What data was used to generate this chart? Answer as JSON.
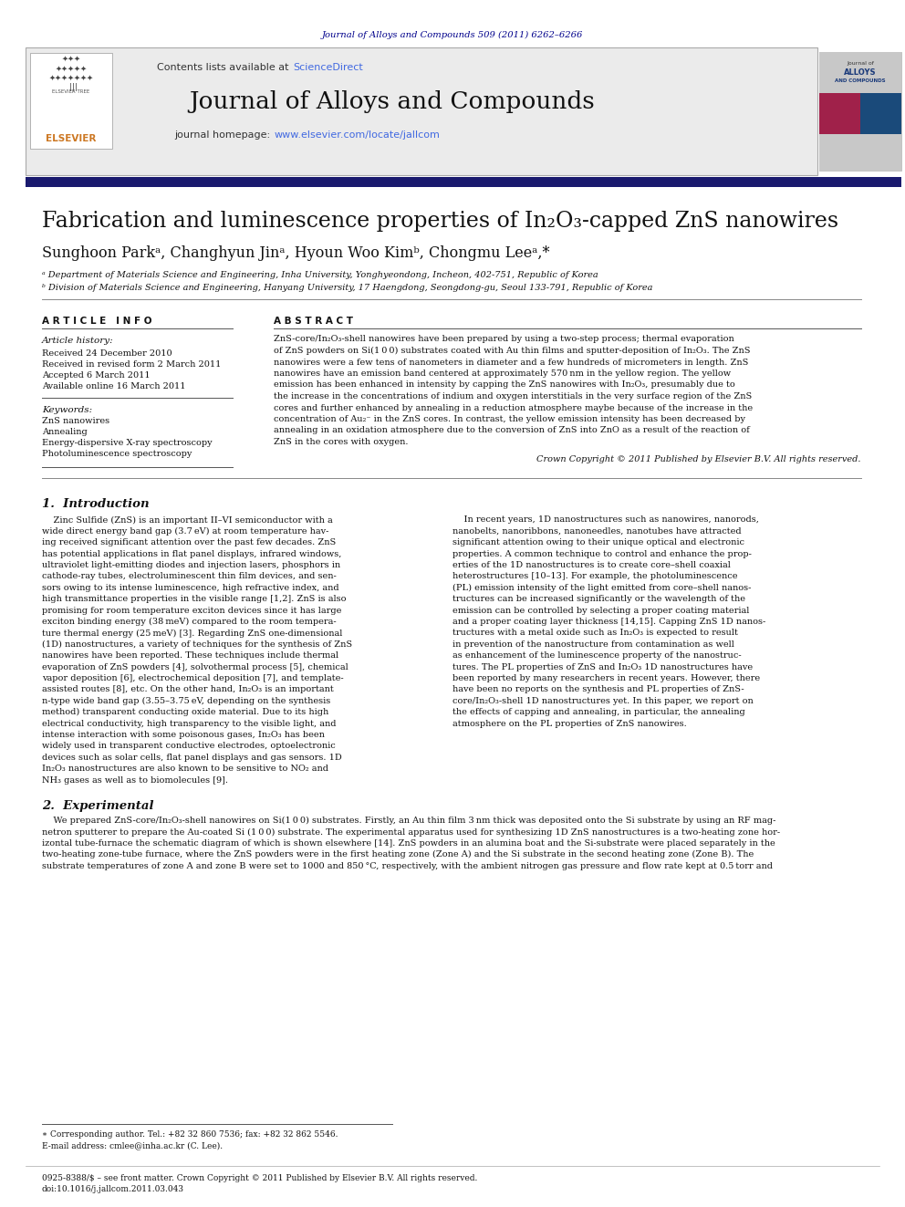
{
  "journal_ref": "Journal of Alloys and Compounds 509 (2011) 6262–6266",
  "journal_name": "Journal of Alloys and Compounds",
  "journal_homepage": "www.elsevier.com/locate/jallcom",
  "title": "Fabrication and luminescence properties of In₂O₃-capped ZnS nanowires",
  "authors": "Sunghoon Parkᵃ, Changhyun Jinᵃ, Hyoun Woo Kimᵇ, Chongmu Leeᵃ,*",
  "affil_a": "ᵃ Department of Materials Science and Engineering, Inha University, Yonghyeondong, Incheon, 402-751, Republic of Korea",
  "affil_b": "ᵇ Division of Materials Science and Engineering, Hanyang University, 17 Haengdong, Seongdong-gu, Seoul 133-791, Republic of Korea",
  "article_info_header": "A R T I C L E   I N F O",
  "abstract_header": "A B S T R A C T",
  "article_history_label": "Article history:",
  "received": "Received 24 December 2010",
  "received_revised": "Received in revised form 2 March 2011",
  "accepted": "Accepted 6 March 2011",
  "available": "Available online 16 March 2011",
  "keywords_label": "Keywords:",
  "keyword1": "ZnS nanowires",
  "keyword2": "Annealing",
  "keyword3": "Energy-dispersive X-ray spectroscopy",
  "keyword4": "Photoluminescence spectroscopy",
  "copyright": "Crown Copyright © 2011 Published by Elsevier B.V. All rights reserved.",
  "section1_title": "1.  Introduction",
  "section2_title": "2.  Experimental",
  "footnote_star": "∗ Corresponding author. Tel.: +82 32 860 7536; fax: +82 32 862 5546.",
  "footnote_email": "E-mail address: cmlee@inha.ac.kr (C. Lee).",
  "footer_issn": "0925-8388/$ – see front matter. Crown Copyright © 2011 Published by Elsevier B.V. All rights reserved.",
  "footer_doi": "doi:10.1016/j.jallcom.2011.03.043",
  "color_blue_dark": "#00008B",
  "color_blue_sci": "#4169E1",
  "color_orange": "#CC7722",
  "color_gray_bg": "#EBEBEB",
  "color_separator": "#1a1a6e",
  "abstract_lines": [
    "ZnS-core/In₂O₃-shell nanowires have been prepared by using a two-step process; thermal evaporation",
    "of ZnS powders on Si(1 0 0) substrates coated with Au thin films and sputter-deposition of In₂O₃. The ZnS",
    "nanowires were a few tens of nanometers in diameter and a few hundreds of micrometers in length. ZnS",
    "nanowires have an emission band centered at approximately 570 nm in the yellow region. The yellow",
    "emission has been enhanced in intensity by capping the ZnS nanowires with In₂O₃, presumably due to",
    "the increase in the concentrations of indium and oxygen interstitials in the very surface region of the ZnS",
    "cores and further enhanced by annealing in a reduction atmosphere maybe because of the increase in the",
    "concentration of Au₂⁻ in the ZnS cores. In contrast, the yellow emission intensity has been decreased by",
    "annealing in an oxidation atmosphere due to the conversion of ZnS into ZnO as a result of the reaction of",
    "ZnS in the cores with oxygen."
  ],
  "intro_col1_lines": [
    "    Zinc Sulfide (ZnS) is an important II–VI semiconductor with a",
    "wide direct energy band gap (3.7 eV) at room temperature hav-",
    "ing received significant attention over the past few decades. ZnS",
    "has potential applications in flat panel displays, infrared windows,",
    "ultraviolet light-emitting diodes and injection lasers, phosphors in",
    "cathode-ray tubes, electroluminescent thin film devices, and sen-",
    "sors owing to its intense luminescence, high refractive index, and",
    "high transmittance properties in the visible range [1,2]. ZnS is also",
    "promising for room temperature exciton devices since it has large",
    "exciton binding energy (38 meV) compared to the room tempera-",
    "ture thermal energy (25 meV) [3]. Regarding ZnS one-dimensional",
    "(1D) nanostructures, a variety of techniques for the synthesis of ZnS",
    "nanowires have been reported. These techniques include thermal",
    "evaporation of ZnS powders [4], solvothermal process [5], chemical",
    "vapor deposition [6], electrochemical deposition [7], and template-",
    "assisted routes [8], etc. On the other hand, In₂O₃ is an important",
    "n-type wide band gap (3.55–3.75 eV, depending on the synthesis",
    "method) transparent conducting oxide material. Due to its high",
    "electrical conductivity, high transparency to the visible light, and",
    "intense interaction with some poisonous gases, In₂O₃ has been",
    "widely used in transparent conductive electrodes, optoelectronic",
    "devices such as solar cells, flat panel displays and gas sensors. 1D",
    "In₂O₃ nanostructures are also known to be sensitive to NO₂ and",
    "NH₃ gases as well as to biomolecules [9]."
  ],
  "intro_col2_lines": [
    "    In recent years, 1D nanostructures such as nanowires, nanorods,",
    "nanobelts, nanoribbons, nanoneedles, nanotubes have attracted",
    "significant attention owing to their unique optical and electronic",
    "properties. A common technique to control and enhance the prop-",
    "erties of the 1D nanostructures is to create core–shell coaxial",
    "heterostructures [10–13]. For example, the photoluminescence",
    "(PL) emission intensity of the light emitted from core–shell nanos-",
    "tructures can be increased significantly or the wavelength of the",
    "emission can be controlled by selecting a proper coating material",
    "and a proper coating layer thickness [14,15]. Capping ZnS 1D nanos-",
    "tructures with a metal oxide such as In₂O₃ is expected to result",
    "in prevention of the nanostructure from contamination as well",
    "as enhancement of the luminescence property of the nanostruc-",
    "tures. The PL properties of ZnS and In₂O₃ 1D nanostructures have",
    "been reported by many researchers in recent years. However, there",
    "have been no reports on the synthesis and PL properties of ZnS-",
    "core/In₂O₃-shell 1D nanostructures yet. In this paper, we report on",
    "the effects of capping and annealing, in particular, the annealing",
    "atmosphere on the PL properties of ZnS nanowires."
  ],
  "exp_lines": [
    "    We prepared ZnS-core/In₂O₃-shell nanowires on Si(1 0 0) substrates. Firstly, an Au thin film 3 nm thick was deposited onto the Si substrate by using an RF mag-",
    "netron sputterer to prepare the Au-coated Si (1 0 0) substrate. The experimental apparatus used for synthesizing 1D ZnS nanostructures is a two-heating zone hor-",
    "izontal tube-furnace the schematic diagram of which is shown elsewhere [14]. ZnS powders in an alumina boat and the Si-substrate were placed separately in the",
    "two-heating zone-tube furnace, where the ZnS powders were in the first heating zone (Zone A) and the Si substrate in the second heating zone (Zone B). The",
    "substrate temperatures of zone A and zone B were set to 1000 and 850 °C, respectively, with the ambient nitrogen gas pressure and flow rate kept at 0.5 torr and"
  ]
}
